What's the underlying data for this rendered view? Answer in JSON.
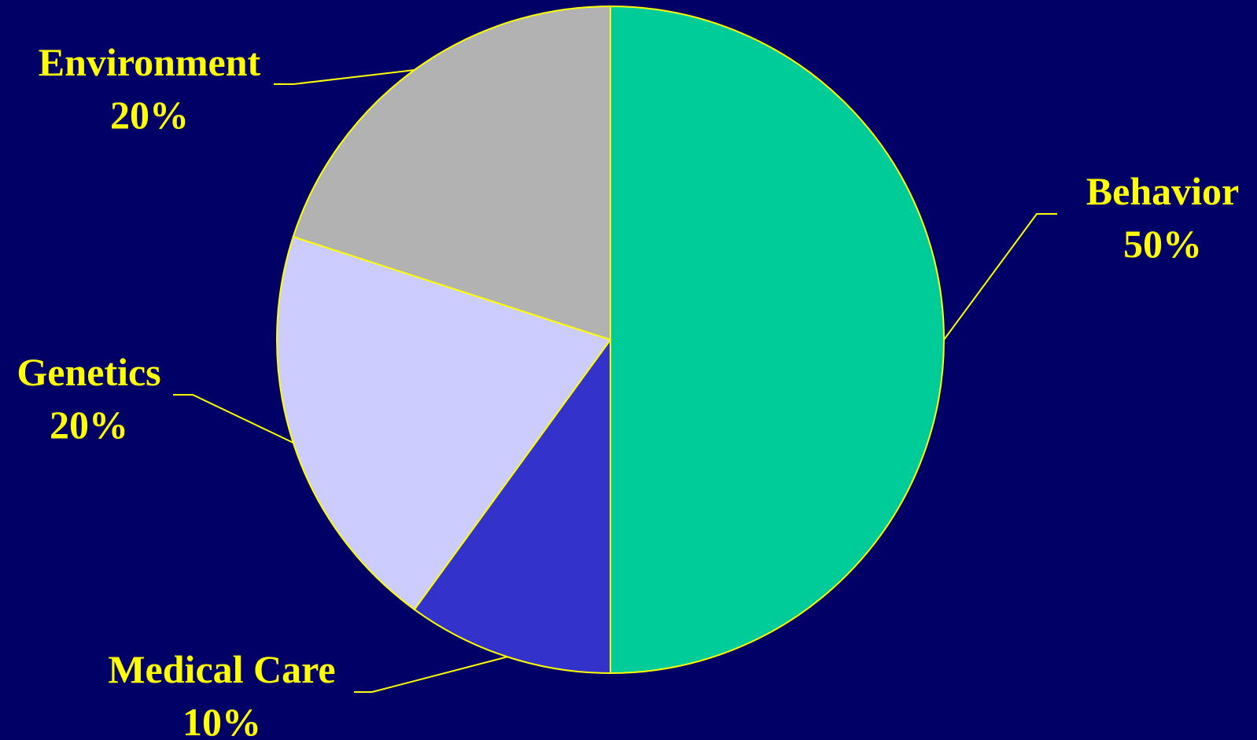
{
  "colors": {
    "background": "#000066",
    "label_text": "#FFFF00",
    "slice_outline": "#FFFF00",
    "leader_line": "#FFFF00"
  },
  "chart_data": {
    "type": "pie",
    "title": "",
    "start_angle_deg": 0,
    "direction": "clockwise",
    "slices": [
      {
        "name": "Behavior",
        "value": 50,
        "label": "50%",
        "color": "#00CC99"
      },
      {
        "name": "Medical Care",
        "value": 10,
        "label": "10%",
        "color": "#3333CC"
      },
      {
        "name": "Genetics",
        "value": 20,
        "label": "20%",
        "color": "#CCCCFF"
      },
      {
        "name": "Environment",
        "value": 20,
        "label": "20%",
        "color": "#B2B2B2"
      }
    ]
  }
}
